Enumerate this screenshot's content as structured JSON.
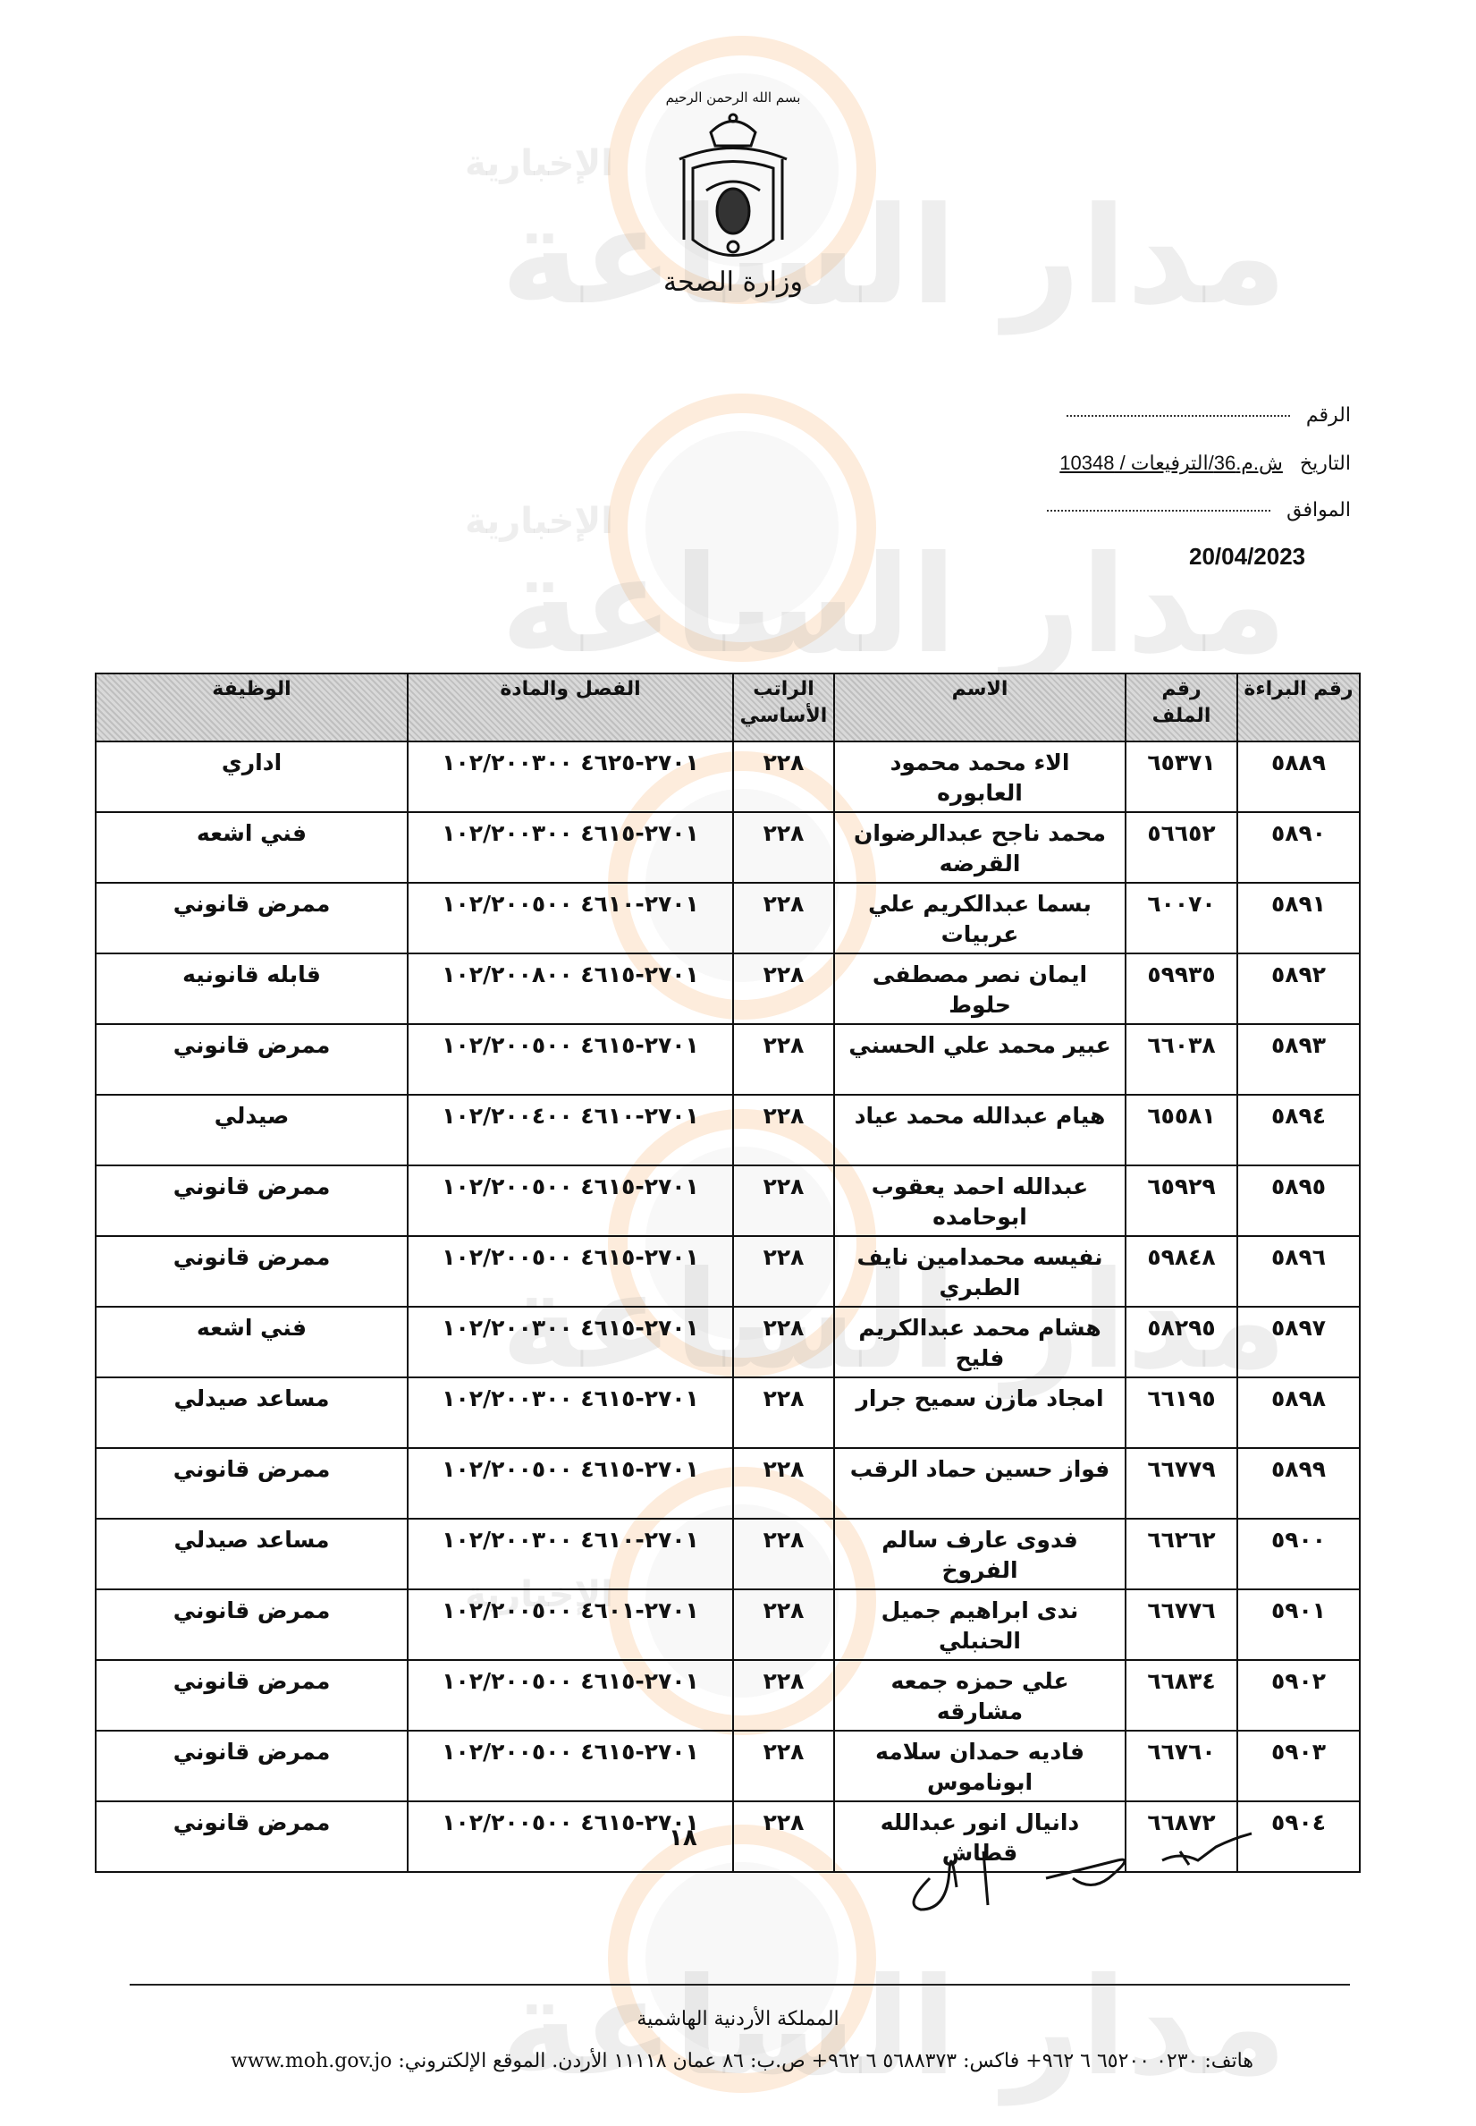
{
  "letterhead": {
    "basmala": "بسم الله الرحمن الرحيم",
    "ministry": "وزارة الصحة",
    "emblem-icon": "jordan-coat-of-arms-icon"
  },
  "meta": {
    "number_label": "الرقم",
    "date_label": "التاريخ",
    "reference": "ش.م.36/الترفيعات / 10348",
    "corresponding_label": "الموافق",
    "date": "20/04/2023"
  },
  "table": {
    "headers": [
      "رقم البراءة",
      "رقم الملف",
      "الاسم",
      "الراتب الأساسي",
      "الفصل والمادة",
      "الوظيفة"
    ],
    "rows": [
      {
        "seq": "٥٨٨٩",
        "file": "٦٥٣٧١",
        "name": "الاء محمد محمود العابوره",
        "salary": "٢٢٨",
        "code": "١٠٢/٢٠٠٣٠٠ ٤٦٢٥-٢٧٠١",
        "job": "اداري"
      },
      {
        "seq": "٥٨٩٠",
        "file": "٥٦٦٥٢",
        "name": "محمد ناجح عبدالرضوان القرضه",
        "salary": "٢٢٨",
        "code": "١٠٢/٢٠٠٣٠٠ ٤٦١٥-٢٧٠١",
        "job": "فني اشعه"
      },
      {
        "seq": "٥٨٩١",
        "file": "٦٠٠٧٠",
        "name": "بسما عبدالكريم علي عربيات",
        "salary": "٢٢٨",
        "code": "١٠٢/٢٠٠٥٠٠ ٤٦١٠-٢٧٠١",
        "job": "ممرض قانوني"
      },
      {
        "seq": "٥٨٩٢",
        "file": "٥٩٩٣٥",
        "name": "ايمان نصر مصطفى حلوط",
        "salary": "٢٢٨",
        "code": "١٠٢/٢٠٠٨٠٠ ٤٦١٥-٢٧٠١",
        "job": "قابله قانونيه"
      },
      {
        "seq": "٥٨٩٣",
        "file": "٦٦٠٣٨",
        "name": "عبير محمد علي الحسني",
        "salary": "٢٢٨",
        "code": "١٠٢/٢٠٠٥٠٠ ٤٦١٥-٢٧٠١",
        "job": "ممرض قانوني"
      },
      {
        "seq": "٥٨٩٤",
        "file": "٦٥٥٨١",
        "name": "هيام عبدالله محمد عياد",
        "salary": "٢٢٨",
        "code": "١٠٢/٢٠٠٤٠٠ ٤٦١٠-٢٧٠١",
        "job": "صيدلي"
      },
      {
        "seq": "٥٨٩٥",
        "file": "٦٥٩٢٩",
        "name": "عبدالله احمد يعقوب ابوحامده",
        "salary": "٢٢٨",
        "code": "١٠٢/٢٠٠٥٠٠ ٤٦١٥-٢٧٠١",
        "job": "ممرض قانوني"
      },
      {
        "seq": "٥٨٩٦",
        "file": "٥٩٨٤٨",
        "name": "نفيسه محمدامين نايف الطبري",
        "salary": "٢٢٨",
        "code": "١٠٢/٢٠٠٥٠٠ ٤٦١٥-٢٧٠١",
        "job": "ممرض قانوني"
      },
      {
        "seq": "٥٨٩٧",
        "file": "٥٨٢٩٥",
        "name": "هشام محمد عبدالكريم فليح",
        "salary": "٢٢٨",
        "code": "١٠٢/٢٠٠٣٠٠ ٤٦١٥-٢٧٠١",
        "job": "فني اشعه"
      },
      {
        "seq": "٥٨٩٨",
        "file": "٦٦١٩٥",
        "name": "امجاد مازن سميح جرار",
        "salary": "٢٢٨",
        "code": "١٠٢/٢٠٠٣٠٠ ٤٦١٥-٢٧٠١",
        "job": "مساعد صيدلي"
      },
      {
        "seq": "٥٨٩٩",
        "file": "٦٦٧٧٩",
        "name": "فواز حسين حماد الرقب",
        "salary": "٢٢٨",
        "code": "١٠٢/٢٠٠٥٠٠ ٤٦١٥-٢٧٠١",
        "job": "ممرض قانوني"
      },
      {
        "seq": "٥٩٠٠",
        "file": "٦٦٢٦٢",
        "name": "فدوى عارف سالم الفروخ",
        "salary": "٢٢٨",
        "code": "١٠٢/٢٠٠٣٠٠ ٤٦١٠-٢٧٠١",
        "job": "مساعد صيدلي"
      },
      {
        "seq": "٥٩٠١",
        "file": "٦٦٧٧٦",
        "name": "ندى ابراهيم جميل الحنبلي",
        "salary": "٢٢٨",
        "code": "١٠٢/٢٠٠٥٠٠ ٤٦٠١-٢٧٠١",
        "job": "ممرض قانوني"
      },
      {
        "seq": "٥٩٠٢",
        "file": "٦٦٨٣٤",
        "name": "علي حمزه جمعه مشارقه",
        "salary": "٢٢٨",
        "code": "١٠٢/٢٠٠٥٠٠ ٤٦١٥-٢٧٠١",
        "job": "ممرض قانوني"
      },
      {
        "seq": "٥٩٠٣",
        "file": "٦٦٧٦٠",
        "name": "فاديه حمدان سلامه ابوناموس",
        "salary": "٢٢٨",
        "code": "١٠٢/٢٠٠٥٠٠ ٤٦١٥-٢٧٠١",
        "job": "ممرض قانوني"
      },
      {
        "seq": "٥٩٠٤",
        "file": "٦٦٨٧٢",
        "name": "دانيال انور عبدالله قطاش",
        "salary": "٢٢٨",
        "code": "١٠٢/٢٠٠٥٠٠ ٤٦١٥-٢٧٠١",
        "job": "ممرض قانوني"
      }
    ]
  },
  "page_number": "١٨",
  "footer": {
    "kingdom": "المملكة الأردنية الهاشمية",
    "contact": "هاتف: ٠٢٣٠ ٦٥٢٠٠ ٦ ٩٦٢+ فاكس: ٥٦٨٨٣٧٣ ٦ ٩٦٢+ ص.ب: ٨٦ عمان ١١١١٨ الأردن. الموقع الإلكتروني: www.moh.gov.jo"
  },
  "watermark": {
    "brand": "مدار الساعة",
    "sub": "الإخبارية"
  },
  "colors": {
    "watermark_ring": "#f5963c",
    "header_fill": "#d9d9d9"
  }
}
